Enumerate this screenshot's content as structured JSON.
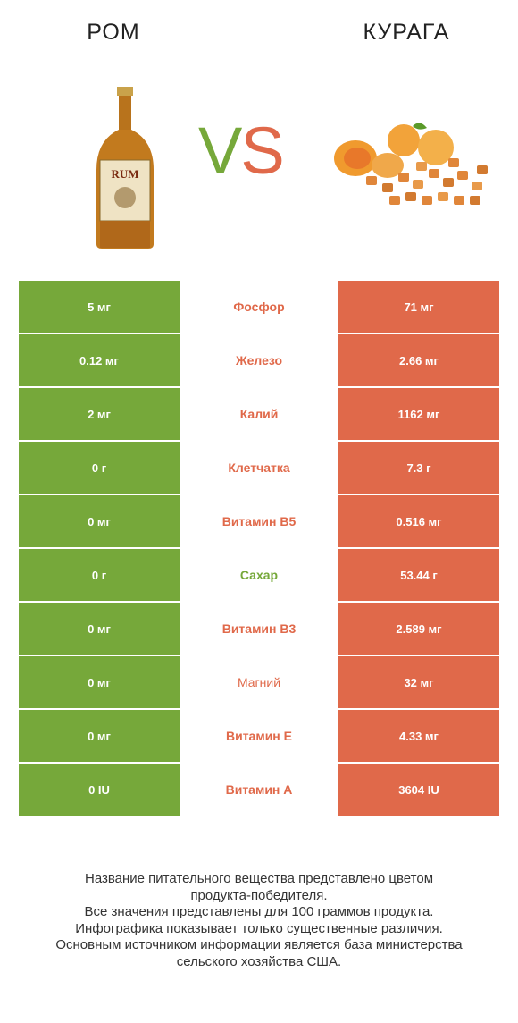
{
  "header": {
    "left_title": "РОМ",
    "right_title": "КУРАГА",
    "vs_v": "V",
    "vs_s": "S"
  },
  "images": {
    "left_icon": "rum-bottle-icon",
    "right_icon": "dried-apricots-icon",
    "rum_label": "RUM"
  },
  "colors": {
    "left": "#76a83a",
    "right": "#e0694a"
  },
  "rows": [
    {
      "nutrient": "Фосфор",
      "left": "5 мг",
      "right": "71 мг",
      "winner": "right"
    },
    {
      "nutrient": "Железо",
      "left": "0.12 мг",
      "right": "2.66 мг",
      "winner": "right"
    },
    {
      "nutrient": "Калий",
      "left": "2 мг",
      "right": "1162 мг",
      "winner": "right"
    },
    {
      "nutrient": "Клетчатка",
      "left": "0 г",
      "right": "7.3 г",
      "winner": "right"
    },
    {
      "nutrient": "Витамин B5",
      "left": "0 мг",
      "right": "0.516 мг",
      "winner": "right"
    },
    {
      "nutrient": "Сахар",
      "left": "0 г",
      "right": "53.44 г",
      "winner": "left"
    },
    {
      "nutrient": "Витамин B3",
      "left": "0 мг",
      "right": "2.589 мг",
      "winner": "right"
    },
    {
      "nutrient": "Магний",
      "left": "0 мг",
      "right": "32 мг",
      "winner": "plain"
    },
    {
      "nutrient": "Витамин E",
      "left": "0 мг",
      "right": "4.33 мг",
      "winner": "right"
    },
    {
      "nutrient": "Витамин A",
      "left": "0 IU",
      "right": "3604 IU",
      "winner": "right"
    }
  ],
  "footer": {
    "line1": "Название питательного вещества представлено цветом",
    "line2": "продукта-победителя.",
    "line3": "Все значения представлены для 100 граммов продукта.",
    "line4": "Инфографика показывает только существенные различия.",
    "line5": "Основным источником информации является база министерства",
    "line6": "сельского хозяйства США."
  }
}
